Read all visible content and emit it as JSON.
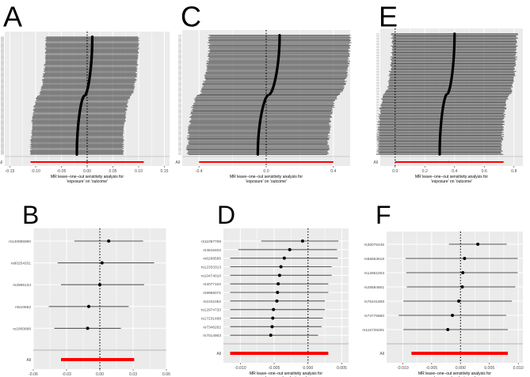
{
  "colors": {
    "panel_bg": "#ebebeb",
    "grid": "#ffffff",
    "ci_line": "#5a5a5a",
    "point": "#000000",
    "overall": "#ff0000",
    "separator": "#bfbfbf",
    "axis_text": "#4d4d4d"
  },
  "chart_data": [
    {
      "panel_letter": "A",
      "type": "forest",
      "n_snps": 170,
      "snp_labels_legible": false,
      "estimate_range": [
        -0.02,
        0.01
      ],
      "ci_halfwidth": 0.09,
      "overall": {
        "label": "All",
        "beta": 0.0,
        "lo": -0.11,
        "hi": 0.11
      },
      "xlim": [
        -0.16,
        0.16
      ],
      "xticks": [
        -0.15,
        -0.1,
        -0.05,
        0,
        0.05,
        0.1,
        0.15
      ],
      "xtick_labels": [
        "-0.15",
        "-0.10",
        "-0.05",
        "0.00",
        "0.05",
        "0.10",
        "0.15"
      ],
      "xlabel": "MR leave−one−out sensitivity analysis for\n'exposure' on 'outcome'"
    },
    {
      "panel_letter": "C",
      "type": "forest",
      "n_snps": 130,
      "snp_labels_legible": false,
      "estimate_range": [
        -0.05,
        0.08
      ],
      "ci_halfwidth": 0.42,
      "overall": {
        "label": "All",
        "beta": 0.0,
        "lo": -0.4,
        "hi": 0.4
      },
      "xlim": [
        -0.5,
        0.5
      ],
      "xticks": [
        -0.4,
        0,
        0.4
      ],
      "xtick_labels": [
        "-0.4",
        "0.0",
        "0.4"
      ],
      "xlabel": "MR leave−one−out sensitivity analysis for\n'exposure' on 'outcome'"
    },
    {
      "panel_letter": "E",
      "type": "forest",
      "n_snps": 110,
      "snp_labels_legible": false,
      "estimate_range": [
        0.3,
        0.4
      ],
      "ci_halfwidth": 0.42,
      "overall": {
        "label": "All",
        "beta": 0.36,
        "lo": 0.0,
        "hi": 0.73
      },
      "xlim": [
        -0.1,
        0.86
      ],
      "xticks": [
        0,
        0.2,
        0.4,
        0.6,
        0.8
      ],
      "xtick_labels": [
        "0.0",
        "0.2",
        "0.4",
        "0.6",
        "0.8"
      ],
      "xlabel": "MR leave−one−out sensitivity analysis for\n'exposure' on 'outcome'"
    },
    {
      "panel_letter": "B",
      "type": "forest",
      "rows": [
        {
          "label": "rs140895990",
          "beta": 0.008,
          "lo": -0.023,
          "hi": 0.039
        },
        {
          "label": "rs80254331",
          "beta": 0.002,
          "lo": -0.038,
          "hi": 0.049
        },
        {
          "label": "rs2865134",
          "beta": 0.0,
          "lo": -0.035,
          "hi": 0.04
        },
        {
          "label": "rs510662",
          "beta": -0.01,
          "lo": -0.046,
          "hi": 0.026
        },
        {
          "label": "rs1800888",
          "beta": -0.011,
          "lo": -0.041,
          "hi": 0.019
        }
      ],
      "overall": {
        "label": "All",
        "beta": 0.0,
        "lo": -0.035,
        "hi": 0.031
      },
      "xlim": [
        -0.06,
        0.06
      ],
      "xticks": [
        -0.06,
        -0.03,
        0,
        0.03,
        0.06
      ],
      "xtick_labels": [
        "-0.06",
        "-0.03",
        "0.00",
        "0.03",
        "0.06"
      ],
      "xlabel": "MR leave−one−out sensitivity analysis for\n'exposure' on 'outcome'"
    },
    {
      "panel_letter": "D",
      "type": "forest",
      "rows": [
        {
          "label": "rs11097769",
          "beta": -0.0008,
          "lo": -0.0069,
          "hi": 0.0045
        },
        {
          "label": "rs4816402",
          "beta": -0.0027,
          "lo": -0.0103,
          "hi": 0.0043
        },
        {
          "label": "rs6298585",
          "beta": -0.0035,
          "lo": -0.0115,
          "hi": 0.0044
        },
        {
          "label": "rs12333313",
          "beta": -0.004,
          "lo": -0.0115,
          "hi": 0.0035
        },
        {
          "label": "rs10474010",
          "beta": -0.0042,
          "lo": -0.0115,
          "hi": 0.0035
        },
        {
          "label": "rs2077102",
          "beta": -0.0044,
          "lo": -0.0115,
          "hi": 0.003
        },
        {
          "label": "rs9966071",
          "beta": -0.0045,
          "lo": -0.0115,
          "hi": 0.003
        },
        {
          "label": "rs1041052",
          "beta": -0.0046,
          "lo": -0.0115,
          "hi": 0.0025
        },
        {
          "label": "rs12974720",
          "beta": -0.0051,
          "lo": -0.0115,
          "hi": 0.0025
        },
        {
          "label": "rs17231488",
          "beta": -0.0052,
          "lo": -0.0115,
          "hi": 0.0022
        },
        {
          "label": "rs7346262",
          "beta": -0.0053,
          "lo": -0.0115,
          "hi": 0.002
        },
        {
          "label": "rs7014903",
          "beta": -0.0055,
          "lo": -0.0115,
          "hi": 0.0015
        }
      ],
      "overall": {
        "label": "All",
        "beta": -0.004,
        "lo": -0.0115,
        "hi": 0.003
      },
      "xlim": [
        -0.0125,
        0.006
      ],
      "xticks": [
        -0.01,
        -0.005,
        0,
        0.005
      ],
      "xtick_labels": [
        "-0.010",
        "-0.005",
        "0.000",
        "0.005"
      ],
      "xlabel": "MR leave−one−out sensitivity analysis for\n'exposure' on 'outcome'"
    },
    {
      "panel_letter": "F",
      "type": "forest",
      "rows": [
        {
          "label": "rs35076445",
          "beta": 0.003,
          "lo": -0.002,
          "hi": 0.008
        },
        {
          "label": "rs55653618",
          "beta": 0.0007,
          "lo": -0.0095,
          "hi": 0.0099
        },
        {
          "label": "rs12661003",
          "beta": 0.0004,
          "lo": -0.0094,
          "hi": 0.0099
        },
        {
          "label": "rs29584801",
          "beta": 0.0003,
          "lo": -0.0093,
          "hi": 0.0095
        },
        {
          "label": "rs76441908",
          "beta": -0.0003,
          "lo": -0.0099,
          "hi": 0.0089
        },
        {
          "label": "rs73776860",
          "beta": -0.0014,
          "lo": -0.0107,
          "hi": 0.0079
        },
        {
          "label": "rs116739291",
          "beta": -0.0022,
          "lo": -0.0099,
          "hi": 0.0082
        }
      ],
      "overall": {
        "label": "All",
        "beta": 0.0,
        "lo": -0.0085,
        "hi": 0.0082
      },
      "xlim": [
        -0.0128,
        0.0108
      ],
      "xticks": [
        -0.01,
        -0.005,
        0,
        0.005,
        0.01
      ],
      "xtick_labels": [
        "-0.010",
        "-0.005",
        "0.000",
        "0.005",
        "0.010"
      ],
      "xlabel": "MR leave−one−out sensitivity analysis for\n'exposure' on 'outcome'"
    }
  ]
}
